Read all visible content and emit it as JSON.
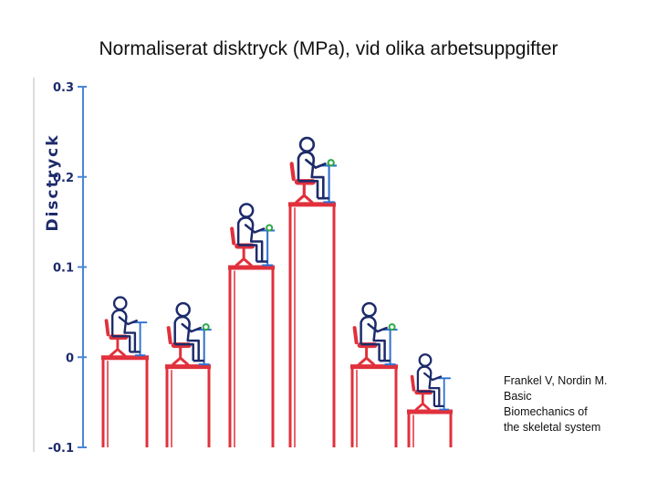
{
  "title": "Normaliserat disktryck (MPa), vid olika arbetsuppgifter",
  "credit": [
    "Frankel V, Nordin M.",
    "Basic",
    "Biomechanics of",
    "the skeletal system"
  ],
  "chart_data": {
    "type": "bar",
    "ylabel": "Disctryck",
    "ylim": [
      -0.1,
      0.3
    ],
    "yticks": [
      -0.1,
      0,
      0.1,
      0.2,
      0.3
    ],
    "yticklabels": [
      "-0.1",
      "0",
      "0.1",
      "0.2",
      "0.3"
    ],
    "categories": [
      "",
      "",
      "",
      "",
      "",
      ""
    ],
    "values": [
      0.0,
      -0.01,
      0.1,
      0.17,
      -0.01,
      -0.06
    ],
    "colors": {
      "bars": "#e0313c",
      "axis": "#4a86d6",
      "ink": "#1d2b6b",
      "desk": "#2f6fd0",
      "accent": "#2ea84a"
    }
  }
}
